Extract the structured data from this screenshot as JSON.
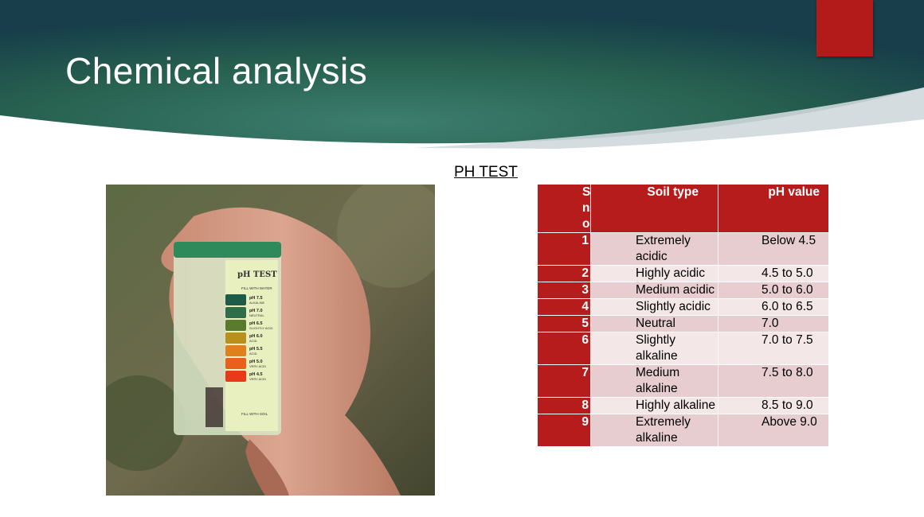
{
  "slide": {
    "title": "Chemical analysis",
    "subtitle": "PH TEST"
  },
  "photo": {
    "device_label": "pH TEST",
    "fill_water": "FILL WITH WATER",
    "fill_soil": "FILL WITH SOIL",
    "scale": [
      {
        "ph": "pH 7.5",
        "desc": "ALKALINE",
        "color": "#1f5c48"
      },
      {
        "ph": "pH 7.0",
        "desc": "NEUTRAL",
        "color": "#2f6e48"
      },
      {
        "ph": "pH 6.5",
        "desc": "SLIGHTLY ACID",
        "color": "#5a7a2e"
      },
      {
        "ph": "pH 6.0",
        "desc": "ACID",
        "color": "#b8901a"
      },
      {
        "ph": "pH 5.5",
        "desc": "ACID",
        "color": "#e0801a"
      },
      {
        "ph": "pH 5.0",
        "desc": "VERY ACID",
        "color": "#e8601a"
      },
      {
        "ph": "pH 4.5",
        "desc": "VERY ACID",
        "color": "#e83a18"
      }
    ]
  },
  "table": {
    "headers": {
      "sno": "Sno",
      "soil": "Soil type",
      "ph": "pH value"
    },
    "rows": [
      {
        "sno": "1",
        "soil": "Extremely acidic",
        "ph": "Below 4.5"
      },
      {
        "sno": "2",
        "soil": "Highly acidic",
        "ph": "4.5 to 5.0"
      },
      {
        "sno": "3",
        "soil": "Medium acidic",
        "ph": "5.0 to 6.0"
      },
      {
        "sno": "4",
        "soil": "Slightly acidic",
        "ph": "6.0 to 6.5"
      },
      {
        "sno": "5",
        "soil": "Neutral",
        "ph": "7.0"
      },
      {
        "sno": "6",
        "soil": "Slightly alkaline",
        "ph": "7.0 to 7.5"
      },
      {
        "sno": "7",
        "soil": "Medium alkaline",
        "ph": "7.5 to 8.0"
      },
      {
        "sno": "8",
        "soil": "Highly alkaline",
        "ph": "8.5 to 9.0"
      },
      {
        "sno": "9",
        "soil": "Extremely alkaline",
        "ph": "Above 9.0"
      }
    ]
  }
}
